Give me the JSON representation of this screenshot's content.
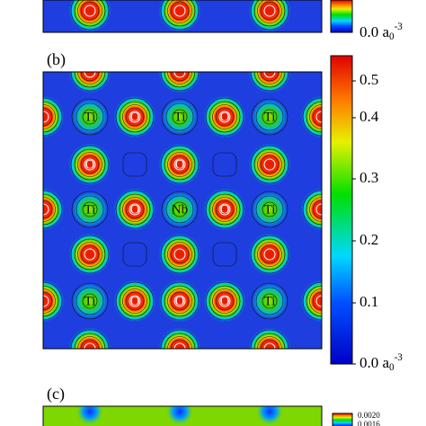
{
  "panels": [
    {
      "label": "(b)"
    },
    {
      "label": "(c)"
    }
  ],
  "colorbar_a": {
    "ticks": [
      {
        "text": "0.0 a",
        "sub": "0",
        "sup": "-3"
      }
    ]
  },
  "colorbar_b": {
    "ticks": [
      {
        "text": "0.5"
      },
      {
        "text": "0.4"
      },
      {
        "text": "0.3"
      },
      {
        "text": "0.2"
      },
      {
        "text": "0.1"
      },
      {
        "text": "0.0 a",
        "sub": "0",
        "sup": "-3"
      }
    ]
  },
  "colorbar_c": {
    "ticks": [
      {
        "text": "0.0020"
      },
      {
        "text": "0.0016"
      }
    ]
  },
  "atoms": [
    {
      "label": "Ti"
    },
    {
      "label": "O"
    },
    {
      "label": "Ti"
    },
    {
      "label": "O"
    },
    {
      "label": "Ti"
    },
    {
      "label": "O"
    },
    {
      "label": "O"
    },
    {
      "label": "Ti"
    },
    {
      "label": "O"
    },
    {
      "label": "Nb"
    },
    {
      "label": "O"
    },
    {
      "label": "Ti"
    },
    {
      "label": "Ti"
    },
    {
      "label": "O"
    },
    {
      "label": "O"
    },
    {
      "label": "O"
    },
    {
      "label": "Ti"
    }
  ]
}
